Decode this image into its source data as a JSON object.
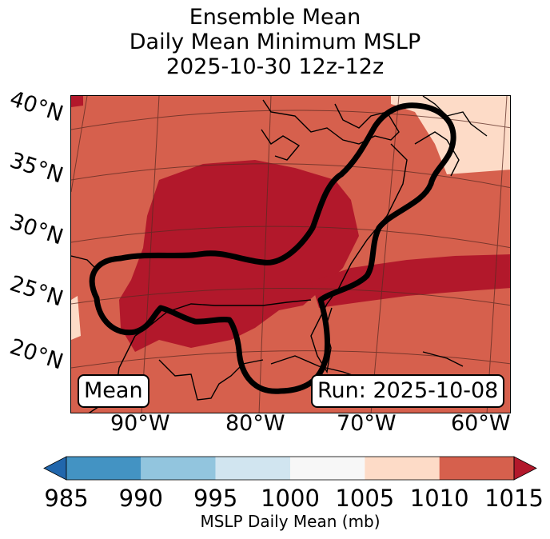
{
  "title": {
    "line1": "Ensemble Mean",
    "line2": "Daily Mean Minimum MSLP",
    "line3": "2025-10-30 12z-12z"
  },
  "map": {
    "lat_labels": [
      "40°N",
      "35°N",
      "30°N",
      "25°N",
      "20°N"
    ],
    "lon_labels": [
      "90°W",
      "80°W",
      "70°W",
      "60°W"
    ],
    "mean_label": "Mean",
    "run_label": "Run: 2025-10-08",
    "colors": {
      "bin_1005_1010": "#fddbc7",
      "bin_1010_1015": "#d6604d",
      "bin_gt_1015": "#b2182b"
    }
  },
  "colorbar": {
    "ticks": [
      "985",
      "990",
      "995",
      "1000",
      "1005",
      "1010",
      "1015"
    ],
    "label": "MSLP Daily Mean (mb)",
    "colors": [
      "#2166ac",
      "#4393c3",
      "#92c5de",
      "#d1e5f0",
      "#f7f7f7",
      "#fddbc7",
      "#d6604d",
      "#b2182b"
    ]
  }
}
